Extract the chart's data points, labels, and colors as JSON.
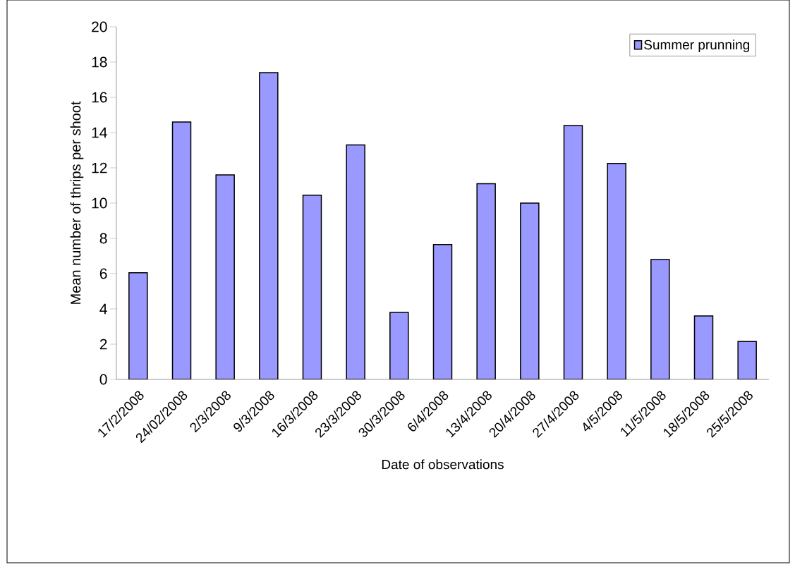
{
  "chart_data": {
    "type": "bar",
    "xlabel": "Date of observations",
    "ylabel": "Mean number of thrips per shoot",
    "categories": [
      "17/2/2008",
      "24/02/2008",
      "2/3/2008",
      "9/3/2008",
      "16/3/2008",
      "23/3/2008",
      "30/3/2008",
      "6/4/2008",
      "13/4/2008",
      "20/4/2008",
      "27/4/2008",
      "4/5/2008",
      "11/5/2008",
      "18/5/2008",
      "25/5/2008"
    ],
    "series": [
      {
        "name": "Summer prunning",
        "color": "#9999ff",
        "values": [
          6.05,
          14.6,
          11.6,
          17.4,
          10.45,
          13.3,
          3.8,
          7.65,
          11.1,
          10.0,
          14.4,
          12.25,
          6.8,
          3.6,
          2.15
        ]
      }
    ],
    "ylim": [
      0,
      20
    ],
    "yticks": [
      0,
      2,
      4,
      6,
      8,
      10,
      12,
      14,
      16,
      18,
      20
    ],
    "legend": "top right"
  }
}
